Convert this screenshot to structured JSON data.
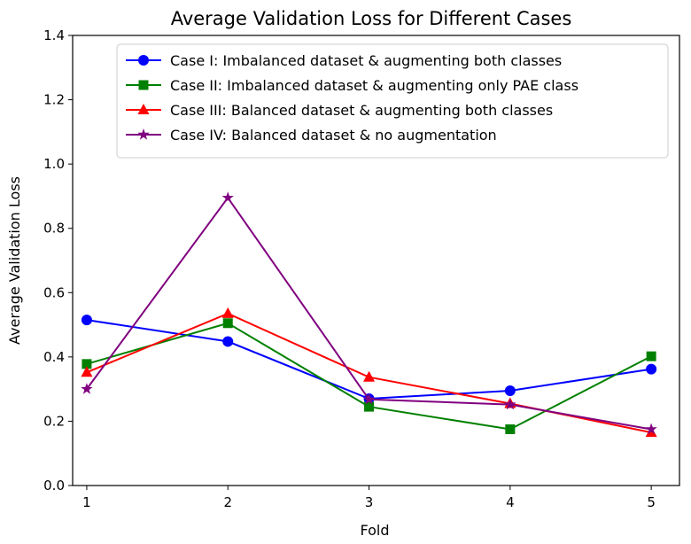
{
  "chart_data": {
    "type": "line",
    "title": "Average Validation Loss for Different Cases",
    "xlabel": "Fold",
    "ylabel": "Average Validation Loss",
    "x": [
      1,
      2,
      3,
      4,
      5
    ],
    "xlim": [
      0.9,
      5.2
    ],
    "ylim": [
      0.0,
      1.4
    ],
    "yticks": [
      0.0,
      0.2,
      0.4,
      0.6,
      0.8,
      1.0,
      1.2,
      1.4
    ],
    "grid": false,
    "legend_position": "top-right",
    "series": [
      {
        "name": "Case I: Imbalanced dataset & augmenting both classes",
        "color": "#0000ff",
        "marker": "circle",
        "values": [
          0.515,
          0.448,
          0.27,
          0.295,
          0.362
        ]
      },
      {
        "name": "Case II: Imbalanced dataset & augmenting only PAE class",
        "color": "#008000",
        "marker": "square",
        "values": [
          0.378,
          0.505,
          0.245,
          0.175,
          0.402
        ]
      },
      {
        "name": "Case III: Balanced dataset & augmenting both classes",
        "color": "#ff0000",
        "marker": "triangle",
        "values": [
          0.352,
          0.535,
          0.337,
          0.255,
          0.165
        ]
      },
      {
        "name": "Case IV: Balanced dataset & no augmentation",
        "color": "#800080",
        "marker": "star",
        "values": [
          0.3,
          0.895,
          0.268,
          0.252,
          0.175
        ]
      }
    ]
  }
}
